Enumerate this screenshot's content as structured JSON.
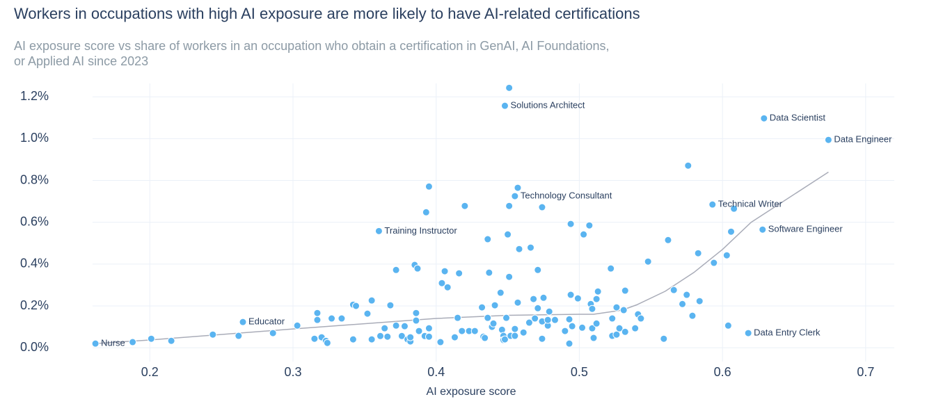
{
  "chart_data": {
    "type": "scatter",
    "title": "Workers in occupations with high AI exposure are more likely to have AI-related certifications",
    "subtitle": [
      "AI exposure score vs share of workers in an occupation who obtain a certification in GenAI, AI Foundations,",
      "or Applied AI since 2023"
    ],
    "x_label": "AI exposure score",
    "xlim": [
      0.16,
      0.72
    ],
    "ylim": [
      -0.066,
      1.264
    ],
    "xticks": [
      0.2,
      0.3,
      0.4,
      0.5,
      0.6,
      0.7
    ],
    "yticks": [
      {
        "value": 0,
        "label": "0.0%"
      },
      {
        "value": 0.2,
        "label": "0.2%"
      },
      {
        "value": 0.4,
        "label": "0.4%"
      },
      {
        "value": 0.6,
        "label": "0.6%"
      },
      {
        "value": 0.8,
        "label": "0.8%"
      },
      {
        "value": 1.0,
        "label": "1.0%"
      },
      {
        "value": 1.2,
        "label": "1.2%"
      }
    ],
    "grid": true,
    "series": [
      {
        "color": "#5ab4f0",
        "x": [
          0.162,
          0.188,
          0.201,
          0.215,
          0.244,
          0.262,
          0.265,
          0.286,
          0.303,
          0.315,
          0.317,
          0.317,
          0.32,
          0.323,
          0.324,
          0.327,
          0.334,
          0.342,
          0.342,
          0.344,
          0.352,
          0.355,
          0.355,
          0.36,
          0.361,
          0.364,
          0.366,
          0.368,
          0.372,
          0.372,
          0.376,
          0.378,
          0.38,
          0.382,
          0.382,
          0.385,
          0.386,
          0.386,
          0.387,
          0.388,
          0.392,
          0.393,
          0.395,
          0.395,
          0.395,
          0.403,
          0.404,
          0.406,
          0.408,
          0.413,
          0.415,
          0.416,
          0.418,
          0.42,
          0.423,
          0.427,
          0.432,
          0.433,
          0.434,
          0.436,
          0.436,
          0.437,
          0.439,
          0.44,
          0.441,
          0.445,
          0.446,
          0.447,
          0.447,
          0.448,
          0.448,
          0.449,
          0.45,
          0.451,
          0.451,
          0.451,
          0.452,
          0.455,
          0.455,
          0.455,
          0.457,
          0.457,
          0.458,
          0.461,
          0.465,
          0.466,
          0.468,
          0.469,
          0.471,
          0.471,
          0.474,
          0.474,
          0.474,
          0.475,
          0.478,
          0.478,
          0.479,
          0.483,
          0.49,
          0.493,
          0.493,
          0.494,
          0.494,
          0.495,
          0.499,
          0.502,
          0.503,
          0.507,
          0.508,
          0.509,
          0.509,
          0.51,
          0.512,
          0.512,
          0.513,
          0.522,
          0.523,
          0.523,
          0.526,
          0.526,
          0.528,
          0.531,
          0.532,
          0.532,
          0.539,
          0.541,
          0.543,
          0.548,
          0.559,
          0.562,
          0.566,
          0.572,
          0.575,
          0.576,
          0.579,
          0.583,
          0.584,
          0.593,
          0.594,
          0.603,
          0.604,
          0.606,
          0.608,
          0.618,
          0.628,
          0.629,
          0.674
        ],
        "values": [
          0.02,
          0.027,
          0.043,
          0.033,
          0.063,
          0.057,
          0.123,
          0.07,
          0.106,
          0.043,
          0.133,
          0.166,
          0.05,
          0.033,
          0.023,
          0.14,
          0.14,
          0.04,
          0.206,
          0.2,
          0.163,
          0.04,
          0.226,
          0.558,
          0.056,
          0.093,
          0.053,
          0.203,
          0.106,
          0.372,
          0.056,
          0.103,
          0.04,
          0.03,
          0.05,
          0.396,
          0.166,
          0.13,
          0.379,
          0.08,
          0.056,
          0.648,
          0.093,
          0.771,
          0.053,
          0.027,
          0.309,
          0.366,
          0.289,
          0.05,
          0.143,
          0.356,
          0.08,
          0.678,
          0.08,
          0.08,
          0.193,
          0.053,
          0.047,
          0.519,
          0.143,
          0.359,
          0.1,
          0.116,
          0.203,
          0.263,
          0.086,
          0.057,
          0.037,
          0.04,
          1.157,
          0.143,
          0.542,
          1.243,
          0.339,
          0.678,
          0.057,
          0.057,
          0.725,
          0.09,
          0.216,
          0.765,
          0.472,
          0.073,
          0.12,
          0.479,
          0.233,
          0.14,
          0.372,
          0.189,
          0.126,
          0.672,
          0.043,
          0.239,
          0.106,
          0.133,
          0.173,
          0.133,
          0.08,
          0.136,
          0.02,
          0.592,
          0.253,
          0.103,
          0.236,
          0.096,
          0.542,
          0.585,
          0.209,
          0.186,
          0.093,
          0.047,
          0.116,
          0.233,
          0.269,
          0.379,
          0.14,
          0.057,
          0.193,
          0.063,
          0.093,
          0.18,
          0.076,
          0.273,
          0.093,
          0.16,
          0.14,
          0.412,
          0.043,
          0.515,
          0.276,
          0.209,
          0.253,
          0.871,
          0.153,
          0.452,
          0.223,
          0.685,
          0.406,
          0.442,
          0.106,
          0.555,
          0.665,
          0.07,
          0.565,
          1.097,
          0.994
        ],
        "point_labels": [
          "Nurse",
          null,
          null,
          null,
          null,
          null,
          "Educator",
          null,
          null,
          null,
          null,
          null,
          null,
          null,
          null,
          null,
          null,
          null,
          null,
          null,
          null,
          null,
          null,
          "Training Instructor",
          null,
          null,
          null,
          null,
          null,
          null,
          null,
          null,
          null,
          null,
          null,
          null,
          null,
          null,
          null,
          null,
          null,
          null,
          null,
          null,
          null,
          null,
          null,
          null,
          null,
          null,
          null,
          null,
          null,
          null,
          null,
          null,
          null,
          null,
          null,
          null,
          null,
          null,
          null,
          null,
          null,
          null,
          null,
          null,
          null,
          null,
          "Solutions Architect",
          null,
          null,
          null,
          null,
          null,
          null,
          null,
          "Technology Consultant",
          null,
          null,
          null,
          null,
          null,
          null,
          null,
          null,
          null,
          null,
          null,
          null,
          null,
          null,
          null,
          null,
          null,
          null,
          null,
          null,
          null,
          null,
          null,
          null,
          null,
          null,
          null,
          null,
          null,
          null,
          null,
          null,
          null,
          null,
          null,
          null,
          null,
          null,
          null,
          null,
          null,
          null,
          null,
          null,
          null,
          null,
          null,
          null,
          null,
          null,
          null,
          null,
          null,
          null,
          null,
          null,
          null,
          null,
          "Technical Writer",
          null,
          null,
          null,
          null,
          null,
          "Data Entry Clerk",
          "Software Engineer",
          "Data Scientist",
          "Data Engineer"
        ]
      }
    ],
    "trend_line": {
      "color": "#a9acb8",
      "x": [
        0.162,
        0.2,
        0.3,
        0.4,
        0.45,
        0.5,
        0.51,
        0.53,
        0.54,
        0.56,
        0.58,
        0.6,
        0.62,
        0.674
      ],
      "values": [
        0.02,
        0.037,
        0.09,
        0.14,
        0.155,
        0.16,
        0.16,
        0.18,
        0.205,
        0.27,
        0.36,
        0.47,
        0.6,
        0.84
      ]
    }
  }
}
